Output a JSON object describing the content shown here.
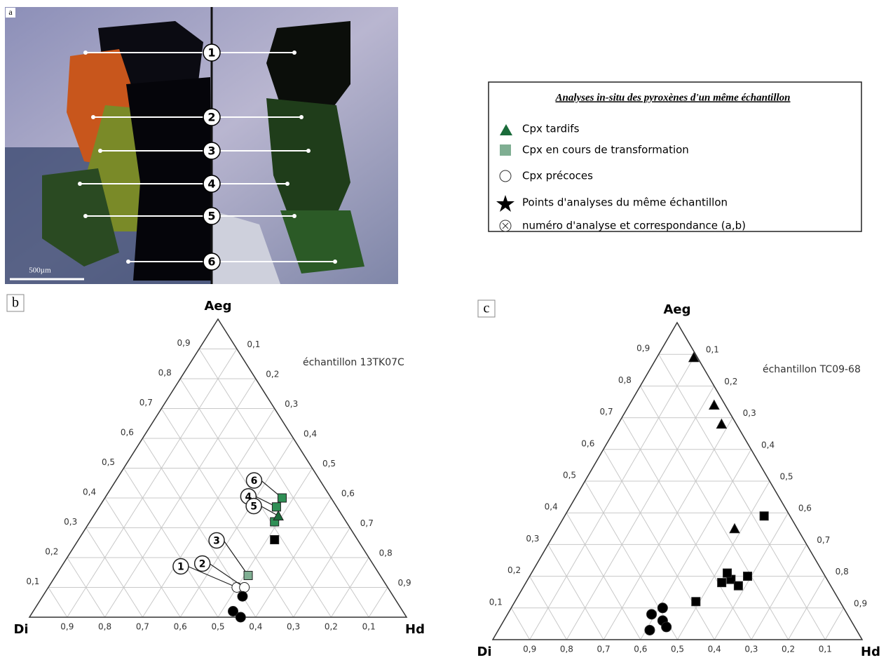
{
  "panel_a": {
    "label": "a",
    "scale_bar": "500µm",
    "markers": [
      "1",
      "2",
      "3",
      "4",
      "5",
      "6"
    ]
  },
  "legend": {
    "title": "Analyses in-situ des pyroxènes d'un même échantillon",
    "items": [
      "Cpx tardifs",
      "Cpx en cours de transformation",
      "Cpx précoces",
      "Points d'analyses du même échantillon",
      "numéro d'analyse et correspondance (a,b)"
    ]
  },
  "chart_data": [
    {
      "type": "ternary",
      "panel": "b",
      "top": "Aeg",
      "left": "Di",
      "right": "Hd",
      "sample": "échantillon 13TK07C",
      "ticks": [
        {
          "value": 0.1,
          "label": "0,1"
        },
        {
          "value": 0.2,
          "label": "0,2"
        },
        {
          "value": 0.3,
          "label": "0,3"
        },
        {
          "value": 0.4,
          "label": "0,4"
        },
        {
          "value": 0.5,
          "label": "0,5"
        },
        {
          "value": 0.6,
          "label": "0,6"
        },
        {
          "value": 0.7,
          "label": "0,7"
        },
        {
          "value": 0.8,
          "label": "0,8"
        },
        {
          "value": 0.9,
          "label": "0,9"
        }
      ],
      "points": [
        {
          "shape": "square",
          "color": "#2f8f55",
          "aeg": 0.4,
          "hd": 0.47,
          "label": "6"
        },
        {
          "shape": "square",
          "color": "#2f8f55",
          "aeg": 0.37,
          "hd": 0.47,
          "label": "4"
        },
        {
          "shape": "square",
          "color": "#2f8f55",
          "aeg": 0.32,
          "hd": 0.49
        },
        {
          "shape": "triangle",
          "color": "#1a6b3a",
          "aeg": 0.34,
          "hd": 0.49,
          "label": "5"
        },
        {
          "shape": "square",
          "color": "#000000",
          "aeg": 0.26,
          "hd": 0.52
        },
        {
          "shape": "square",
          "color": "#7fae92",
          "aeg": 0.14,
          "hd": 0.51,
          "label": "3"
        },
        {
          "shape": "circle",
          "color": "#ffffff",
          "aeg": 0.1,
          "hd": 0.5,
          "label": "1"
        },
        {
          "shape": "circle",
          "color": "#ffffff",
          "aeg": 0.1,
          "hd": 0.52,
          "label": "2"
        },
        {
          "shape": "circle",
          "color": "#000000",
          "aeg": 0.07,
          "hd": 0.53
        },
        {
          "shape": "circle",
          "color": "#000000",
          "aeg": 0.02,
          "hd": 0.53
        },
        {
          "shape": "circle",
          "color": "#000000",
          "aeg": 0.0,
          "hd": 0.56
        }
      ]
    },
    {
      "type": "ternary",
      "panel": "c",
      "top": "Aeg",
      "left": "Di",
      "right": "Hd",
      "sample": "échantillon TC09-68",
      "ticks": [
        {
          "value": 0.1,
          "label": "0,1"
        },
        {
          "value": 0.2,
          "label": "0,2"
        },
        {
          "value": 0.3,
          "label": "0,3"
        },
        {
          "value": 0.4,
          "label": "0,4"
        },
        {
          "value": 0.5,
          "label": "0,5"
        },
        {
          "value": 0.6,
          "label": "0,6"
        },
        {
          "value": 0.7,
          "label": "0,7"
        },
        {
          "value": 0.8,
          "label": "0,8"
        },
        {
          "value": 0.9,
          "label": "0,9"
        }
      ],
      "points": [
        {
          "shape": "triangle",
          "color": "#000000",
          "aeg": 0.89,
          "hd": 0.1
        },
        {
          "shape": "triangle",
          "color": "#000000",
          "aeg": 0.74,
          "hd": 0.23
        },
        {
          "shape": "triangle",
          "color": "#000000",
          "aeg": 0.68,
          "hd": 0.28
        },
        {
          "shape": "triangle",
          "color": "#000000",
          "aeg": 0.35,
          "hd": 0.48
        },
        {
          "shape": "square",
          "color": "#000000",
          "aeg": 0.39,
          "hd": 0.54
        },
        {
          "shape": "square",
          "color": "#000000",
          "aeg": 0.19,
          "hd": 0.55
        },
        {
          "shape": "square",
          "color": "#000000",
          "aeg": 0.18,
          "hd": 0.53
        },
        {
          "shape": "square",
          "color": "#000000",
          "aeg": 0.17,
          "hd": 0.58
        },
        {
          "shape": "square",
          "color": "#000000",
          "aeg": 0.2,
          "hd": 0.59
        },
        {
          "shape": "square",
          "color": "#000000",
          "aeg": 0.21,
          "hd": 0.53
        },
        {
          "shape": "square",
          "color": "#000000",
          "aeg": 0.12,
          "hd": 0.49
        },
        {
          "shape": "circle",
          "color": "#000000",
          "aeg": 0.1,
          "hd": 0.41
        },
        {
          "shape": "circle",
          "color": "#000000",
          "aeg": 0.08,
          "hd": 0.39
        },
        {
          "shape": "circle",
          "color": "#000000",
          "aeg": 0.06,
          "hd": 0.43
        },
        {
          "shape": "circle",
          "color": "#000000",
          "aeg": 0.04,
          "hd": 0.45
        },
        {
          "shape": "circle",
          "color": "#000000",
          "aeg": 0.03,
          "hd": 0.41
        }
      ]
    }
  ]
}
